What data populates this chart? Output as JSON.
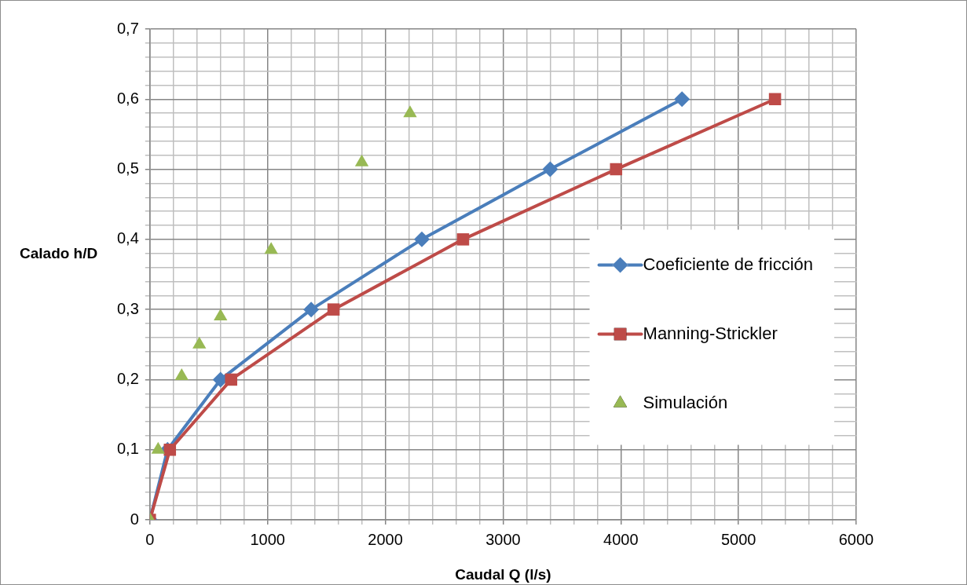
{
  "chart_data": {
    "type": "line",
    "xlabel": "Caudal Q (l/s)",
    "ylabel": "Calado h/D",
    "xlim": [
      0,
      6000
    ],
    "ylim": [
      0,
      0.7
    ],
    "xticks": [
      0,
      {
        "value": 200,
        "label": null
      },
      {
        "value": 400,
        "label": null
      },
      {
        "value": 600,
        "label": null
      },
      {
        "value": 800,
        "label": null
      },
      1000,
      {
        "value": 1200,
        "label": null
      },
      {
        "value": 1400,
        "label": null
      },
      {
        "value": 1600,
        "label": null
      },
      {
        "value": 1800,
        "label": null
      },
      2000,
      {
        "value": 2200,
        "label": null
      },
      {
        "value": 2400,
        "label": null
      },
      {
        "value": 2600,
        "label": null
      },
      {
        "value": 2800,
        "label": null
      },
      3000,
      {
        "value": 3200,
        "label": null
      },
      {
        "value": 3400,
        "label": null
      },
      {
        "value": 3600,
        "label": null
      },
      {
        "value": 3800,
        "label": null
      },
      4000,
      {
        "value": 4200,
        "label": null
      },
      {
        "value": 4400,
        "label": null
      },
      {
        "value": 4600,
        "label": null
      },
      {
        "value": 4800,
        "label": null
      },
      5000,
      {
        "value": 5200,
        "label": null
      },
      {
        "value": 5400,
        "label": null
      },
      {
        "value": 5600,
        "label": null
      },
      {
        "value": 5800,
        "label": null
      },
      6000
    ],
    "yticks": [
      0,
      {
        "value": 0.02,
        "label": null
      },
      {
        "value": 0.04,
        "label": null
      },
      {
        "value": 0.06,
        "label": null
      },
      {
        "value": 0.08,
        "label": null
      },
      {
        "value": 0.1,
        "label": "0,1"
      },
      {
        "value": 0.12,
        "label": null
      },
      {
        "value": 0.14,
        "label": null
      },
      {
        "value": 0.16,
        "label": null
      },
      {
        "value": 0.18,
        "label": null
      },
      {
        "value": 0.2,
        "label": "0,2"
      },
      {
        "value": 0.22,
        "label": null
      },
      {
        "value": 0.24,
        "label": null
      },
      {
        "value": 0.26,
        "label": null
      },
      {
        "value": 0.28,
        "label": null
      },
      {
        "value": 0.3,
        "label": "0,3"
      },
      {
        "value": 0.32,
        "label": null
      },
      {
        "value": 0.34,
        "label": null
      },
      {
        "value": 0.36,
        "label": null
      },
      {
        "value": 0.38,
        "label": null
      },
      {
        "value": 0.4,
        "label": "0,4"
      },
      {
        "value": 0.42,
        "label": null
      },
      {
        "value": 0.44,
        "label": null
      },
      {
        "value": 0.46,
        "label": null
      },
      {
        "value": 0.48,
        "label": null
      },
      {
        "value": 0.5,
        "label": "0,5"
      },
      {
        "value": 0.52,
        "label": null
      },
      {
        "value": 0.54,
        "label": null
      },
      {
        "value": 0.56,
        "label": null
      },
      {
        "value": 0.58,
        "label": null
      },
      {
        "value": 0.6,
        "label": "0,6"
      },
      {
        "value": 0.62,
        "label": null
      },
      {
        "value": 0.64,
        "label": null
      },
      {
        "value": 0.66,
        "label": null
      },
      {
        "value": 0.68,
        "label": null
      },
      {
        "value": 0.7,
        "label": "0,7"
      }
    ],
    "grid": true,
    "legend": "right",
    "line_style": "solid",
    "series": [
      {
        "name": "Coeficiente de fricción",
        "type": "line",
        "marker": "diamond",
        "color": "#4a7ebb",
        "x": [
          0,
          150,
          600,
          1370,
          2310,
          3400,
          4520
        ],
        "values": [
          0,
          0.1,
          0.2,
          0.3,
          0.4,
          0.5,
          0.6
        ]
      },
      {
        "name": "Manning-Strickler",
        "type": "line",
        "marker": "square",
        "color": "#be4b48",
        "x": [
          0,
          170,
          690,
          1560,
          2660,
          3960,
          5310
        ],
        "values": [
          0,
          0.1,
          0.2,
          0.3,
          0.4,
          0.5,
          0.6
        ]
      },
      {
        "name": "Simulación",
        "type": "scatter",
        "marker": "triangle",
        "color": "#98b954",
        "x": [
          0,
          70,
          270,
          420,
          600,
          1030,
          1800,
          2210
        ],
        "values": [
          0,
          0.1,
          0.205,
          0.25,
          0.29,
          0.385,
          0.51,
          0.58
        ]
      }
    ]
  }
}
